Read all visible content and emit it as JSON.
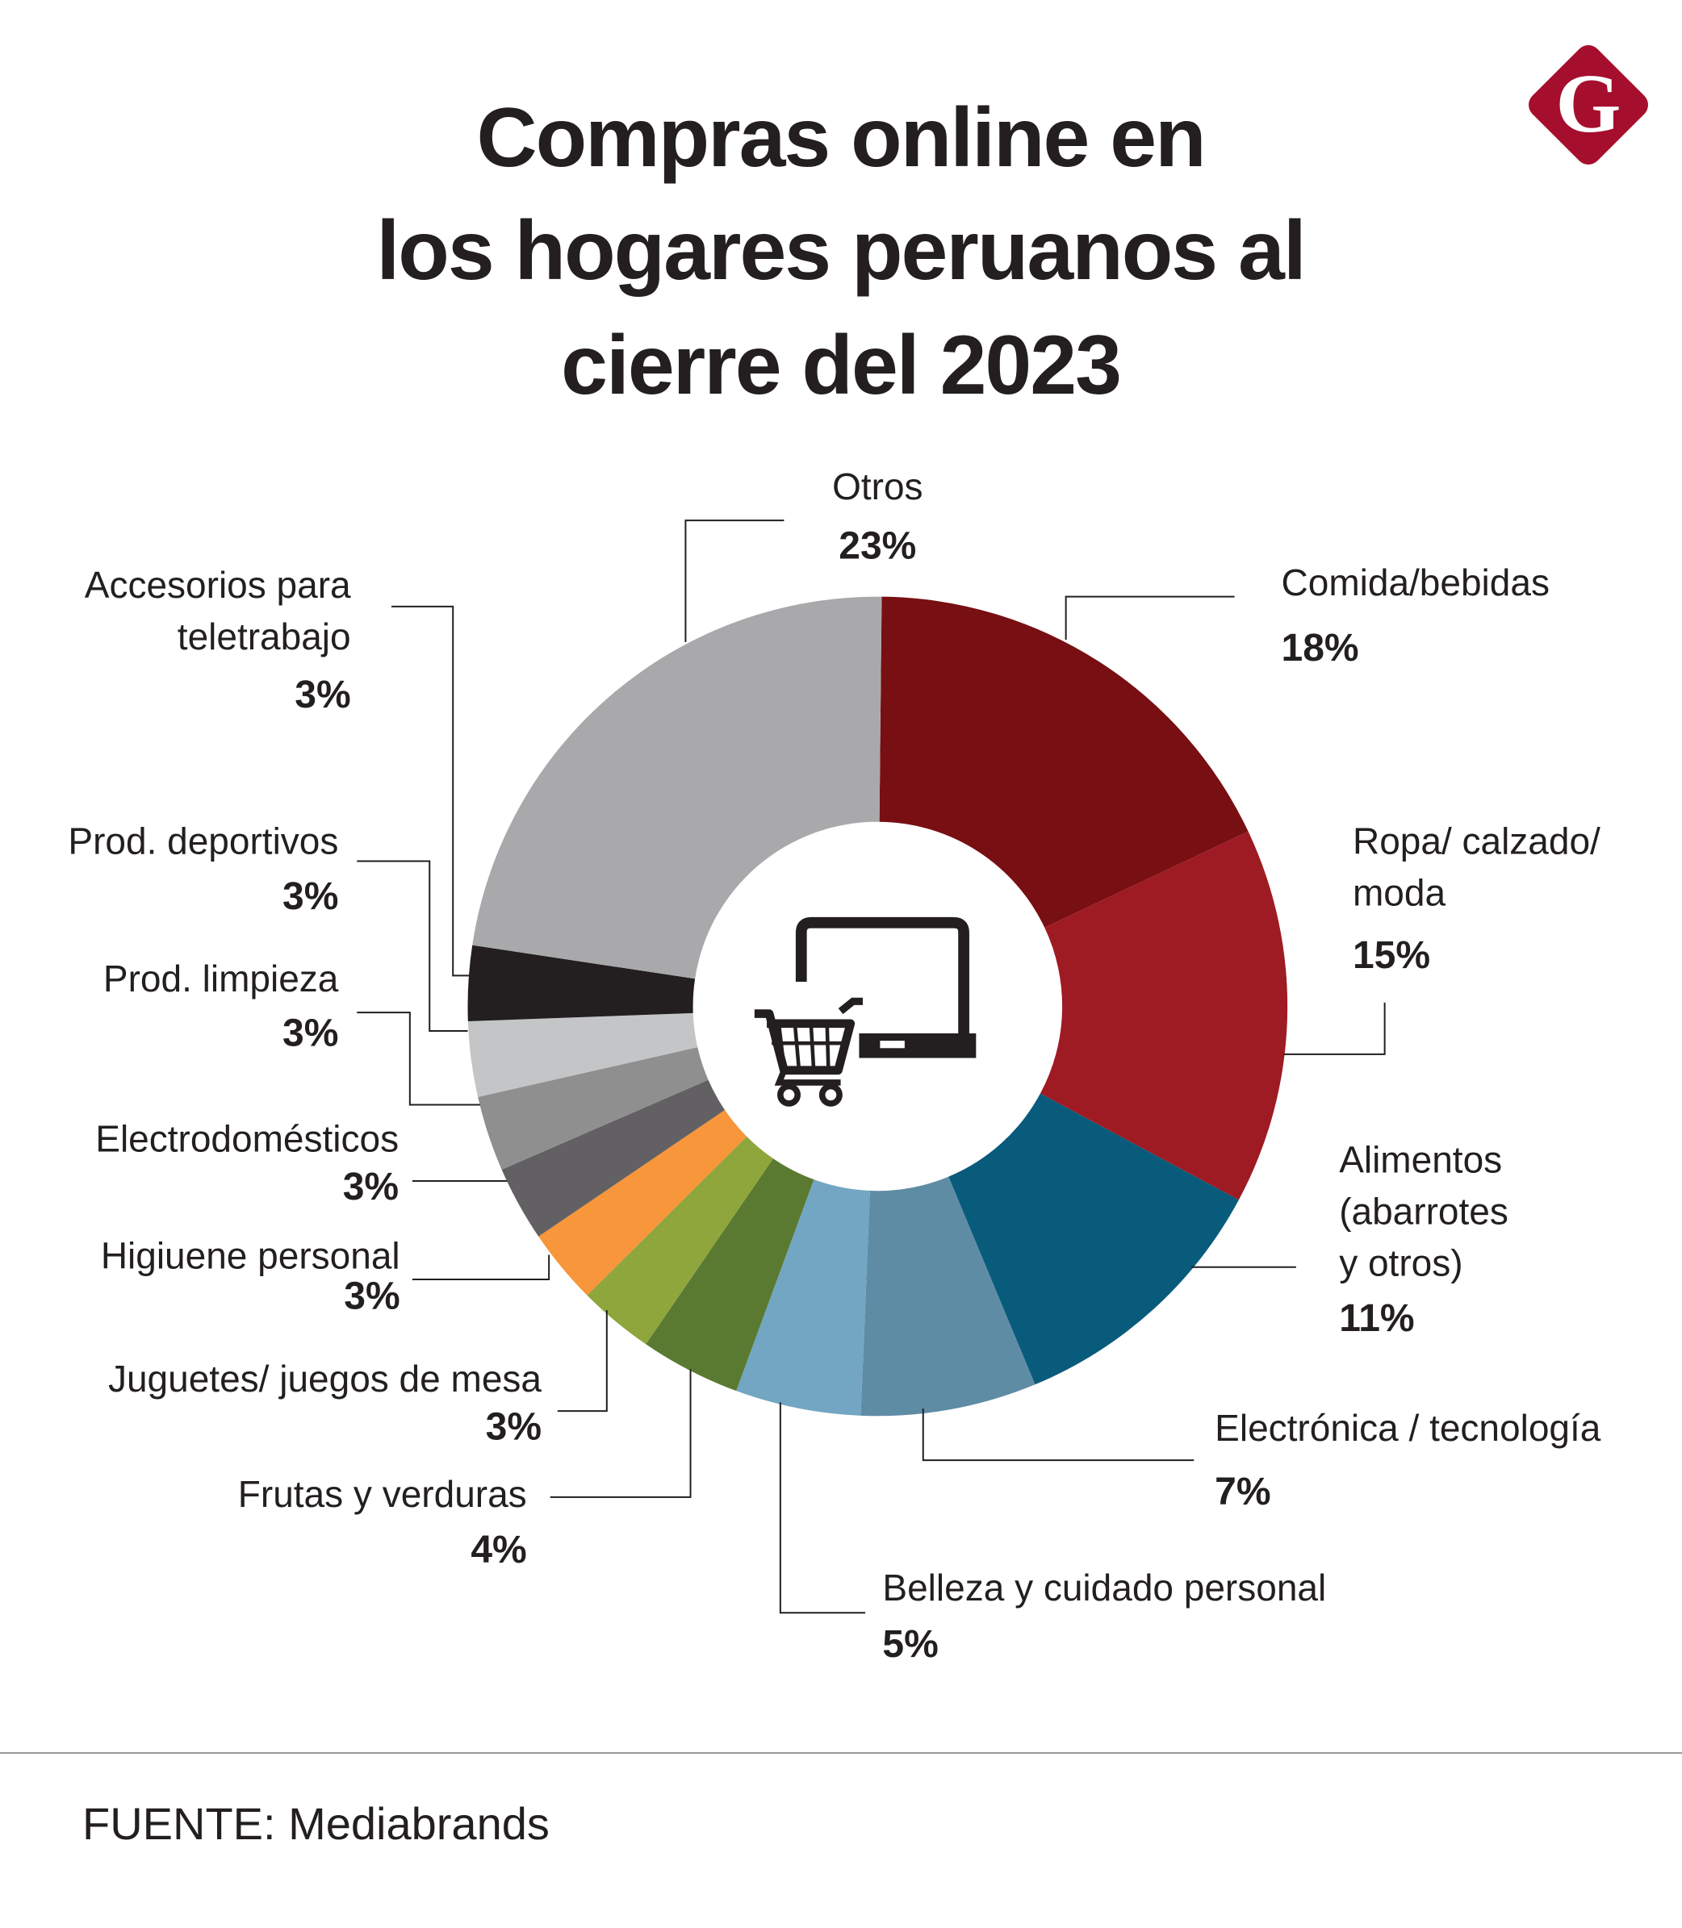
{
  "chart_data": {
    "type": "pie",
    "donut": true,
    "title_lines": [
      "Compras online en",
      "los hogares peruanos al",
      "cierre del 2023"
    ],
    "source": "FUENTE: Mediabrands",
    "slices": [
      {
        "label": [
          "Comida/bebidas"
        ],
        "value": 18,
        "pct_label": "18%",
        "color": "#780f12"
      },
      {
        "label": [
          "Ropa/ calzado/",
          "moda"
        ],
        "value": 15,
        "pct_label": "15%",
        "color": "#9e1b24"
      },
      {
        "label": [
          "Alimentos",
          "(abarrotes",
          "y otros)"
        ],
        "value": 11,
        "pct_label": "11%",
        "color": "#095b7b"
      },
      {
        "label": [
          "Electrónica / tecnología"
        ],
        "value": 7,
        "pct_label": "7%",
        "color": "#5f8ca5"
      },
      {
        "label": [
          "Belleza y cuidado personal"
        ],
        "value": 5,
        "pct_label": "5%",
        "color": "#72a6c2"
      },
      {
        "label": [
          "Frutas y verduras"
        ],
        "value": 4,
        "pct_label": "4%",
        "color": "#5a7a31"
      },
      {
        "label": [
          "Juguetes/ juegos de mesa"
        ],
        "value": 3,
        "pct_label": "3%",
        "color": "#8ea63c"
      },
      {
        "label": [
          "Higiuene personal"
        ],
        "value": 3,
        "pct_label": "3%",
        "color": "#f7963a"
      },
      {
        "label": [
          "Electrodomésticos"
        ],
        "value": 3,
        "pct_label": "3%",
        "color": "#636063"
      },
      {
        "label": [
          "Prod. limpieza"
        ],
        "value": 3,
        "pct_label": "3%",
        "color": "#8f8f90"
      },
      {
        "label": [
          "Prod. deportivos"
        ],
        "value": 3,
        "pct_label": "3%",
        "color": "#c4c5c6"
      },
      {
        "label": [
          "Accesorios para",
          "teletrabajo"
        ],
        "value": 3,
        "pct_label": "3%",
        "color": "#231f20"
      },
      {
        "label": [
          "Otros"
        ],
        "value": 23,
        "pct_label": "23%",
        "color": "#a9a9ab"
      }
    ],
    "center_icon": "laptop-shopping-cart-icon",
    "brand_logo": {
      "letter": "G",
      "color": "#a50f2d"
    }
  }
}
